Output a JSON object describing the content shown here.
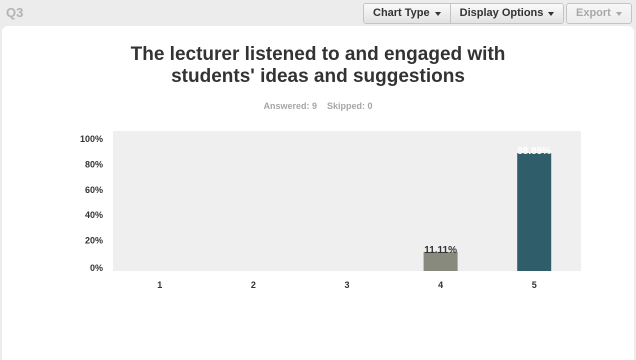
{
  "header": {
    "question_label": "Q3",
    "chart_type_label": "Chart Type",
    "display_options_label": "Display Options",
    "export_label": "Export"
  },
  "summary": {
    "answered": "Answered: 9",
    "skipped": "Skipped: 0"
  },
  "colors": {
    "plot_bg": "#efefef",
    "bar_light": "#878a7d",
    "bar_dark": "#2f5d69"
  },
  "chart_data": {
    "type": "bar",
    "title_lines": [
      "The lecturer listened to and engaged with",
      "students' ideas and suggestions"
    ],
    "categories": [
      "1",
      "2",
      "3",
      "4",
      "5"
    ],
    "values": [
      0,
      0,
      0,
      11.11,
      88.89
    ],
    "data_labels": [
      "",
      "",
      "",
      "11.11%",
      "88.89%"
    ],
    "bar_colors": [
      "#878a7d",
      "#878a7d",
      "#878a7d",
      "#878a7d",
      "#2f5d69"
    ],
    "y_ticks": [
      "0%",
      "20%",
      "40%",
      "60%",
      "80%",
      "100%"
    ],
    "ylim": [
      0,
      100
    ],
    "grid": false,
    "legend": "none"
  }
}
